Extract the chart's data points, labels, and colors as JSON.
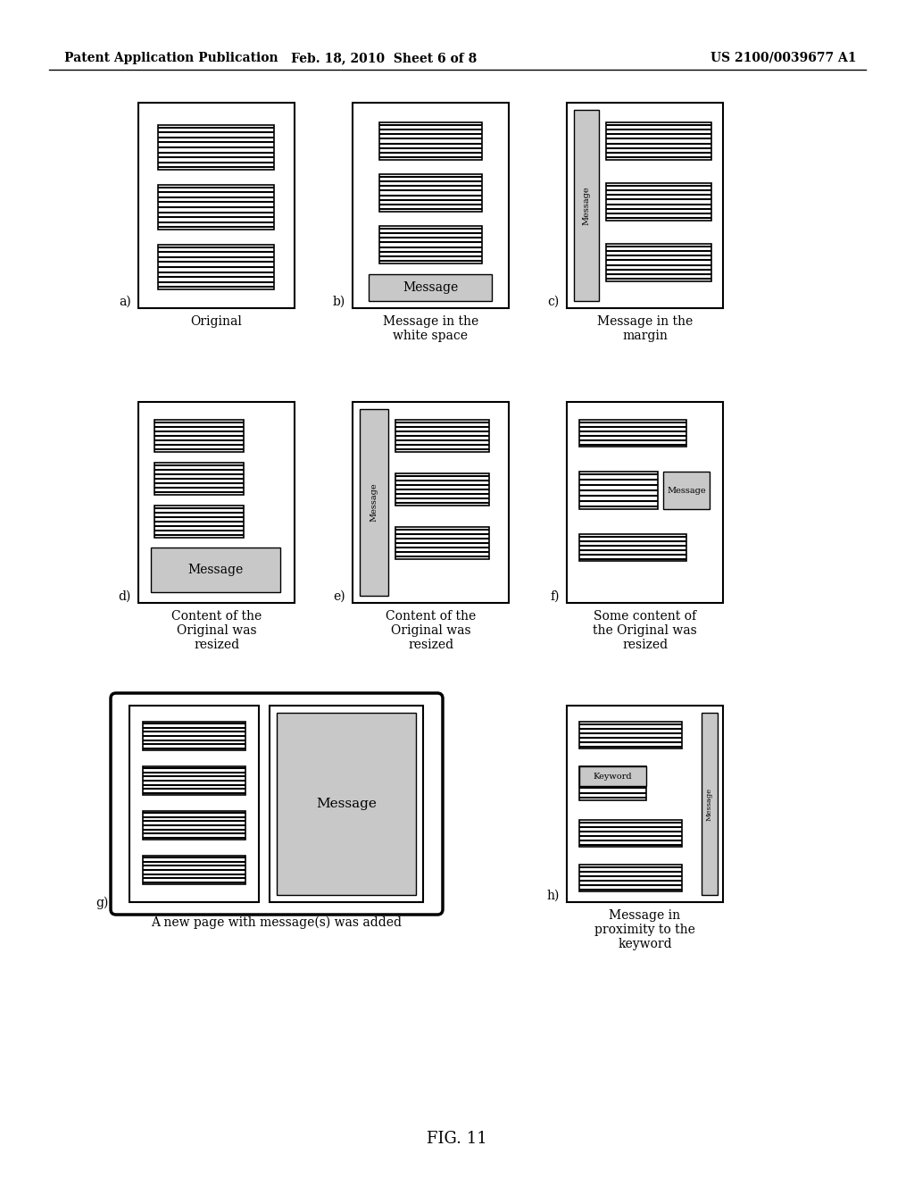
{
  "header_left": "Patent Application Publication",
  "header_mid": "Feb. 18, 2010  Sheet 6 of 8",
  "header_right": "US 2100/0039677 A1",
  "fig_label": "FIG. 11",
  "background": "#ffffff"
}
